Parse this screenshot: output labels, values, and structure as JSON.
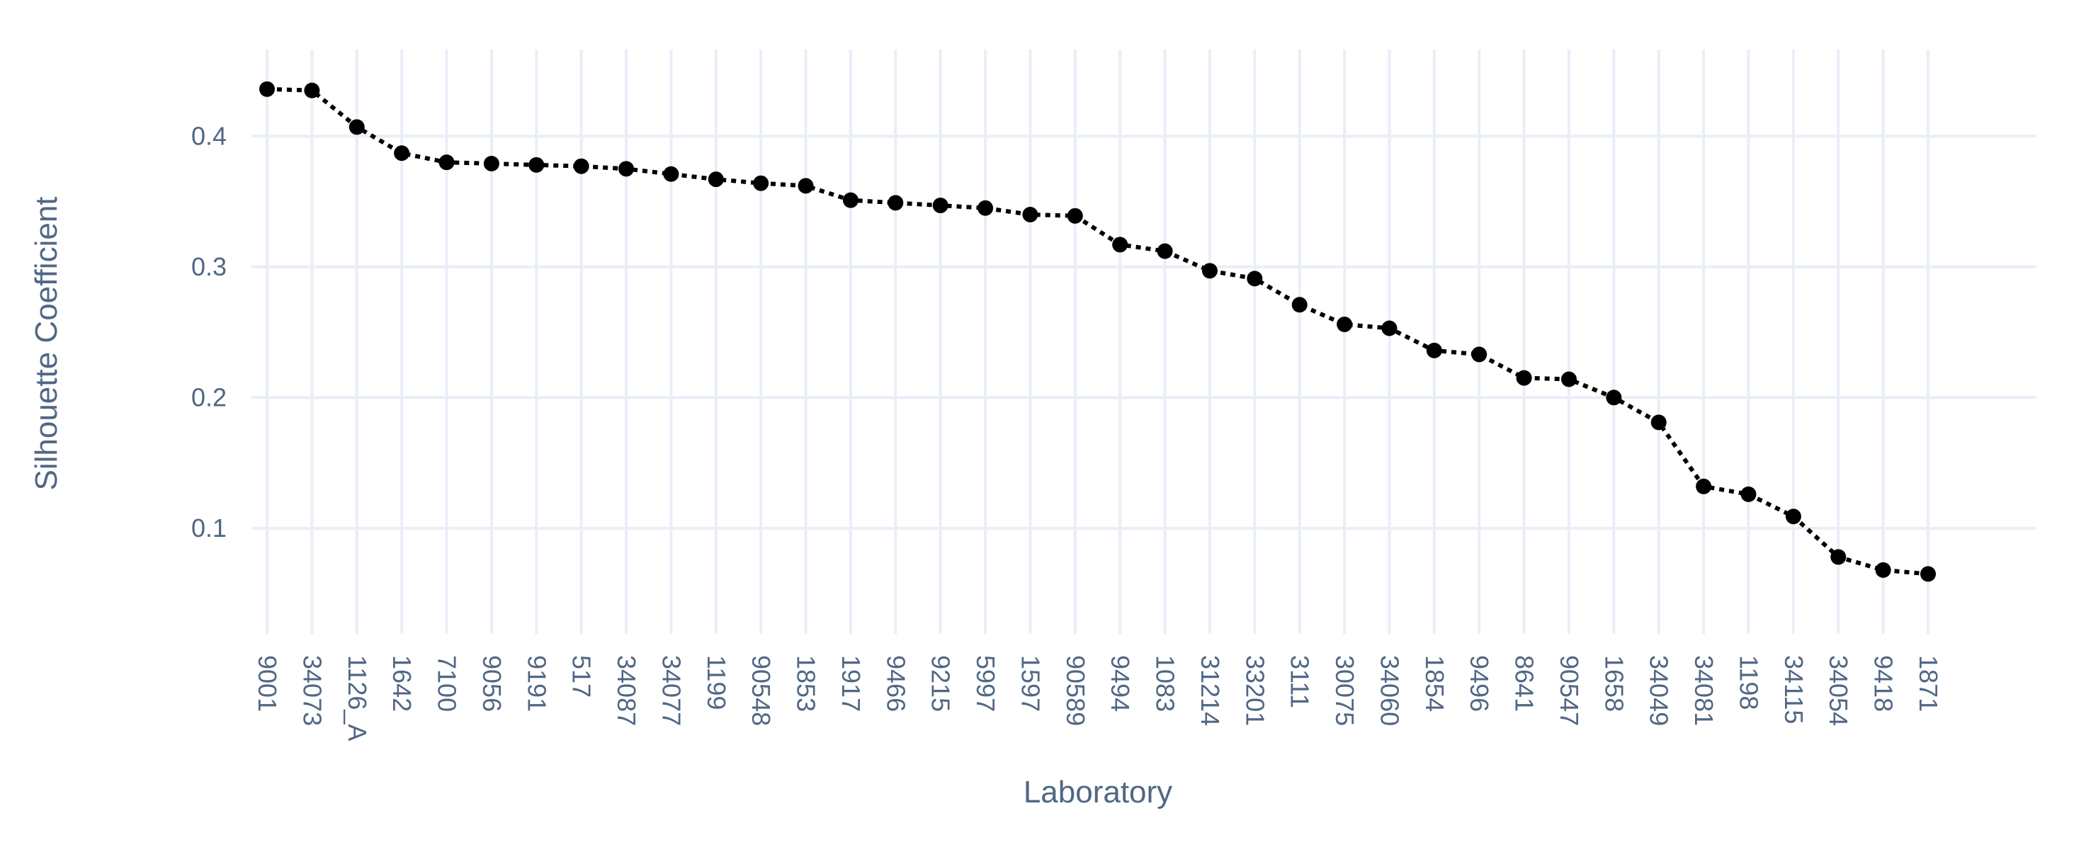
{
  "chart_data": {
    "type": "line",
    "xlabel": "Laboratory",
    "ylabel": "Silhouette Coefficient",
    "ylim": [
      0.03,
      0.45
    ],
    "yticks": [
      0.1,
      0.2,
      0.3,
      0.4
    ],
    "ytick_labels": [
      "0.1",
      "0.2",
      "0.3",
      "0.4"
    ],
    "grid": true,
    "categories": [
      "9001",
      "34073",
      "1126_A",
      "1642",
      "7100",
      "9056",
      "9191",
      "517",
      "34087",
      "34077",
      "1199",
      "90548",
      "1853",
      "1917",
      "9466",
      "9215",
      "5997",
      "1597",
      "90589",
      "9494",
      "1083",
      "31214",
      "33201",
      "3111",
      "30075",
      "34060",
      "1854",
      "9496",
      "8641",
      "90547",
      "1658",
      "34049",
      "34081",
      "1198",
      "34115",
      "34054",
      "9418",
      "1871"
    ],
    "series": [
      {
        "values": [
          0.436,
          0.435,
          0.407,
          0.387,
          0.38,
          0.379,
          0.378,
          0.377,
          0.375,
          0.371,
          0.367,
          0.364,
          0.362,
          0.351,
          0.349,
          0.347,
          0.345,
          0.34,
          0.339,
          0.317,
          0.312,
          0.297,
          0.291,
          0.271,
          0.256,
          0.253,
          0.236,
          0.233,
          0.215,
          0.214,
          0.2,
          0.181,
          0.132,
          0.126,
          0.109,
          0.078,
          0.068,
          0.065
        ],
        "color": "#000000",
        "line_style": "dotted",
        "marker": "circle"
      }
    ],
    "colors": {
      "grid": "#e9eef7",
      "text": "#506784",
      "series": "#000000"
    }
  }
}
